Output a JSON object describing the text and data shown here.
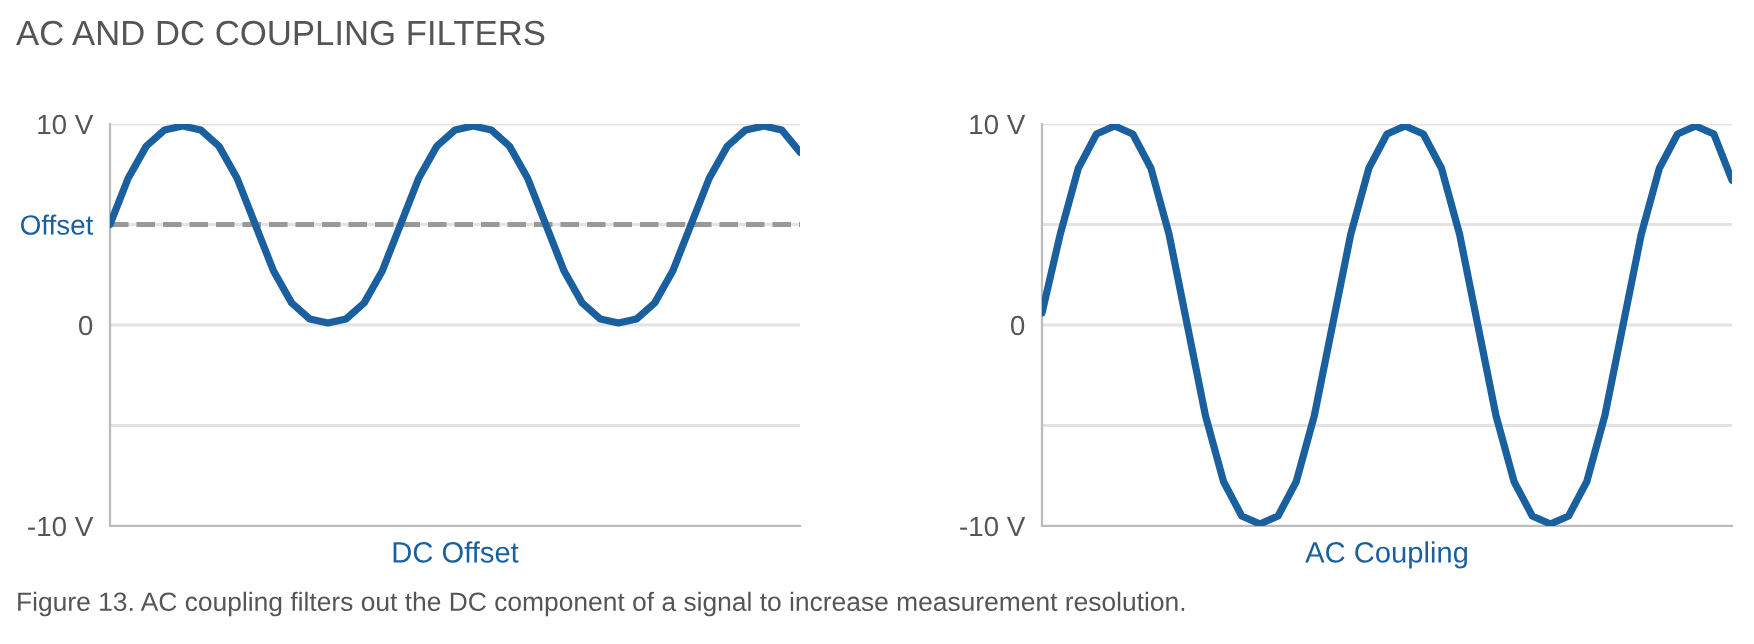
{
  "chart_data": [
    {
      "type": "line",
      "title": "AC AND DC COUPLING FILTERS",
      "xlabel": "DC Offset",
      "categories": [
        null,
        null,
        null,
        null,
        null,
        null,
        null,
        null,
        null,
        null,
        null,
        null,
        null,
        null,
        null,
        null,
        null,
        null,
        null,
        null,
        null,
        null,
        null,
        null,
        null,
        null,
        null,
        null,
        null,
        null,
        null,
        null,
        null,
        null,
        null,
        null,
        null,
        null,
        null
      ],
      "series": [
        {
          "color": "#1a5f9e",
          "values": [
            5,
            7.3,
            8.9,
            9.7,
            9.9,
            9.7,
            8.9,
            7.3,
            5,
            2.7,
            1.1,
            0.3,
            0.1,
            0.3,
            1.1,
            2.7,
            5,
            7.3,
            8.9,
            9.7,
            9.9,
            9.7,
            8.9,
            7.3,
            5,
            2.7,
            1.1,
            0.3,
            0.1,
            0.3,
            1.1,
            2.7,
            5,
            7.3,
            8.9,
            9.7,
            9.9,
            9.7,
            8.6
          ]
        }
      ],
      "ylim": [
        -10,
        10
      ],
      "yticks": [
        {
          "value": 10,
          "label": "10 V"
        },
        {
          "value": 5,
          "label": "Offset"
        },
        0,
        {
          "value": -5,
          "label": null
        },
        {
          "value": -10,
          "label": "-10 V"
        }
      ],
      "ref_lines": [
        {
          "axis": "y",
          "value": 5,
          "label": null,
          "color": "#999999",
          "line_style": "dashed"
        }
      ],
      "grid": "y",
      "marker": "none",
      "line_style": "solid",
      "legend": false
    },
    {
      "type": "line",
      "xlabel": "AC Coupling",
      "annotations": [
        "Figure 13. AC coupling filters out the DC component of a signal to increase measurement resolution."
      ],
      "categories": [
        null,
        null,
        null,
        null,
        null,
        null,
        null,
        null,
        null,
        null,
        null,
        null,
        null,
        null,
        null,
        null,
        null,
        null,
        null,
        null,
        null,
        null,
        null,
        null,
        null,
        null,
        null,
        null,
        null,
        null,
        null,
        null,
        null,
        null,
        null,
        null,
        null,
        null,
        null
      ],
      "series": [
        {
          "color": "#1a5f9e",
          "values": [
            0.6,
            4.5,
            7.8,
            9.5,
            9.9,
            9.5,
            7.8,
            4.5,
            0,
            -4.5,
            -7.8,
            -9.5,
            -9.9,
            -9.5,
            -7.8,
            -4.5,
            0,
            4.5,
            7.8,
            9.5,
            9.9,
            9.5,
            7.8,
            4.5,
            0,
            -4.5,
            -7.8,
            -9.5,
            -9.9,
            -9.5,
            -7.8,
            -4.5,
            0,
            4.5,
            7.8,
            9.5,
            9.9,
            9.5,
            7.2
          ]
        }
      ],
      "ylim": [
        -10,
        10
      ],
      "yticks": [
        {
          "value": 10,
          "label": "10 V"
        },
        {
          "value": 5,
          "label": null
        },
        0,
        {
          "value": -5,
          "label": null
        },
        {
          "value": -10,
          "label": "-10 V"
        }
      ],
      "grid": "y",
      "marker": "none",
      "line_style": "solid",
      "legend": false
    }
  ]
}
